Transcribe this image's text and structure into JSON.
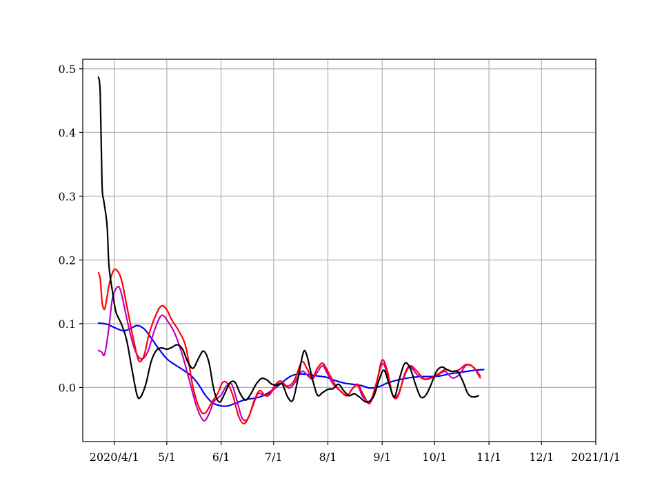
{
  "chart_data": {
    "type": "line",
    "title": "",
    "xlabel": "",
    "ylabel": "",
    "x_axis": {
      "kind": "date",
      "range": [
        "2020-03-14",
        "2021-01-01"
      ],
      "ticks": [
        {
          "date": "2020-04-01",
          "label": "2020/4/1"
        },
        {
          "date": "2020-05-01",
          "label": "5/1"
        },
        {
          "date": "2020-06-01",
          "label": "6/1"
        },
        {
          "date": "2020-07-01",
          "label": "7/1"
        },
        {
          "date": "2020-08-01",
          "label": "8/1"
        },
        {
          "date": "2020-09-01",
          "label": "9/1"
        },
        {
          "date": "2020-10-01",
          "label": "10/1"
        },
        {
          "date": "2020-11-01",
          "label": "11/1"
        },
        {
          "date": "2020-12-01",
          "label": "12/1"
        },
        {
          "date": "2021-01-01",
          "label": "2021/1/1"
        }
      ]
    },
    "y_axis": {
      "range": [
        -0.085,
        0.515
      ],
      "ticks": [
        {
          "value": 0.0,
          "label": "0.0"
        },
        {
          "value": 0.1,
          "label": "0.1"
        },
        {
          "value": 0.2,
          "label": "0.2"
        },
        {
          "value": 0.3,
          "label": "0.3"
        },
        {
          "value": 0.4,
          "label": "0.4"
        },
        {
          "value": 0.5,
          "label": "0.5"
        }
      ]
    },
    "grid": true,
    "legend": "none",
    "series": [
      {
        "color": "#0000ff",
        "points": [
          [
            "2020-03-23",
            0.101
          ],
          [
            "2020-03-28",
            0.099
          ],
          [
            "2020-04-01",
            0.094
          ],
          [
            "2020-04-06",
            0.089
          ],
          [
            "2020-04-10",
            0.092
          ],
          [
            "2020-04-14",
            0.097
          ],
          [
            "2020-04-18",
            0.092
          ],
          [
            "2020-04-22",
            0.078
          ],
          [
            "2020-04-26",
            0.062
          ],
          [
            "2020-05-01",
            0.045
          ],
          [
            "2020-05-06",
            0.035
          ],
          [
            "2020-05-10",
            0.028
          ],
          [
            "2020-05-15",
            0.018
          ],
          [
            "2020-05-19",
            0.005
          ],
          [
            "2020-05-23",
            -0.012
          ],
          [
            "2020-05-27",
            -0.024
          ],
          [
            "2020-06-01",
            -0.029
          ],
          [
            "2020-06-05",
            -0.029
          ],
          [
            "2020-06-10",
            -0.024
          ],
          [
            "2020-06-15",
            -0.019
          ],
          [
            "2020-06-20",
            -0.017
          ],
          [
            "2020-06-25",
            -0.013
          ],
          [
            "2020-07-01",
            -0.003
          ],
          [
            "2020-07-06",
            0.008
          ],
          [
            "2020-07-11",
            0.018
          ],
          [
            "2020-07-16",
            0.021
          ],
          [
            "2020-07-21",
            0.02
          ],
          [
            "2020-07-26",
            0.018
          ],
          [
            "2020-07-31",
            0.016
          ],
          [
            "2020-08-05",
            0.011
          ],
          [
            "2020-08-10",
            0.007
          ],
          [
            "2020-08-15",
            0.005
          ],
          [
            "2020-08-20",
            0.003
          ],
          [
            "2020-08-25",
            -0.001
          ],
          [
            "2020-08-30",
            0.001
          ],
          [
            "2020-09-04",
            0.007
          ],
          [
            "2020-09-09",
            0.011
          ],
          [
            "2020-09-14",
            0.014
          ],
          [
            "2020-09-19",
            0.016
          ],
          [
            "2020-09-24",
            0.017
          ],
          [
            "2020-09-29",
            0.017
          ],
          [
            "2020-10-04",
            0.018
          ],
          [
            "2020-10-09",
            0.021
          ],
          [
            "2020-10-14",
            0.023
          ],
          [
            "2020-10-19",
            0.025
          ],
          [
            "2020-10-24",
            0.027
          ],
          [
            "2020-10-29",
            0.028
          ]
        ]
      },
      {
        "color": "#bf00bf",
        "points": [
          [
            "2020-03-23",
            0.058
          ],
          [
            "2020-03-25",
            0.055
          ],
          [
            "2020-03-26",
            0.05
          ],
          [
            "2020-03-27",
            0.058
          ],
          [
            "2020-03-29",
            0.095
          ],
          [
            "2020-03-31",
            0.14
          ],
          [
            "2020-04-03",
            0.158
          ],
          [
            "2020-04-05",
            0.148
          ],
          [
            "2020-04-08",
            0.11
          ],
          [
            "2020-04-12",
            0.065
          ],
          [
            "2020-04-16",
            0.045
          ],
          [
            "2020-04-20",
            0.055
          ],
          [
            "2020-04-24",
            0.09
          ],
          [
            "2020-04-28",
            0.113
          ],
          [
            "2020-05-02",
            0.102
          ],
          [
            "2020-05-06",
            0.082
          ],
          [
            "2020-05-10",
            0.05
          ],
          [
            "2020-05-14",
            0.01
          ],
          [
            "2020-05-18",
            -0.03
          ],
          [
            "2020-05-22",
            -0.052
          ],
          [
            "2020-05-25",
            -0.042
          ],
          [
            "2020-05-28",
            -0.022
          ],
          [
            "2020-06-01",
            -0.012
          ],
          [
            "2020-06-04",
            0.002
          ],
          [
            "2020-06-07",
            0.005
          ],
          [
            "2020-06-10",
            -0.02
          ],
          [
            "2020-06-13",
            -0.048
          ],
          [
            "2020-06-16",
            -0.05
          ],
          [
            "2020-06-19",
            -0.03
          ],
          [
            "2020-06-22",
            -0.01
          ],
          [
            "2020-06-25",
            -0.012
          ],
          [
            "2020-06-28",
            -0.013
          ],
          [
            "2020-07-01",
            -0.003
          ],
          [
            "2020-07-04",
            0.006
          ],
          [
            "2020-07-07",
            0.004
          ],
          [
            "2020-07-10",
            -0.001
          ],
          [
            "2020-07-13",
            0.007
          ],
          [
            "2020-07-17",
            0.025
          ],
          [
            "2020-07-20",
            0.02
          ],
          [
            "2020-07-23",
            0.013
          ],
          [
            "2020-07-26",
            0.024
          ],
          [
            "2020-07-29",
            0.034
          ],
          [
            "2020-08-01",
            0.02
          ],
          [
            "2020-08-04",
            0.005
          ],
          [
            "2020-08-08",
            -0.005
          ],
          [
            "2020-08-12",
            -0.013
          ],
          [
            "2020-08-15",
            -0.002
          ],
          [
            "2020-08-18",
            0.003
          ],
          [
            "2020-08-21",
            -0.015
          ],
          [
            "2020-08-25",
            -0.022
          ],
          [
            "2020-08-28",
            0.0
          ],
          [
            "2020-09-01",
            0.037
          ],
          [
            "2020-09-04",
            0.02
          ],
          [
            "2020-09-07",
            -0.012
          ],
          [
            "2020-09-10",
            -0.012
          ],
          [
            "2020-09-14",
            0.02
          ],
          [
            "2020-09-17",
            0.032
          ],
          [
            "2020-09-21",
            0.02
          ],
          [
            "2020-09-25",
            0.013
          ],
          [
            "2020-09-29",
            0.015
          ],
          [
            "2020-10-03",
            0.02
          ],
          [
            "2020-10-07",
            0.025
          ],
          [
            "2020-10-11",
            0.015
          ],
          [
            "2020-10-15",
            0.02
          ],
          [
            "2020-10-19",
            0.035
          ],
          [
            "2020-10-23",
            0.032
          ],
          [
            "2020-10-27",
            0.018
          ]
        ]
      },
      {
        "color": "#ff0000",
        "points": [
          [
            "2020-03-23",
            0.18
          ],
          [
            "2020-03-24",
            0.17
          ],
          [
            "2020-03-25",
            0.135
          ],
          [
            "2020-03-26",
            0.123
          ],
          [
            "2020-03-27",
            0.128
          ],
          [
            "2020-03-29",
            0.16
          ],
          [
            "2020-03-31",
            0.18
          ],
          [
            "2020-04-02",
            0.185
          ],
          [
            "2020-04-05",
            0.17
          ],
          [
            "2020-04-08",
            0.13
          ],
          [
            "2020-04-12",
            0.075
          ],
          [
            "2020-04-15",
            0.042
          ],
          [
            "2020-04-18",
            0.05
          ],
          [
            "2020-04-21",
            0.085
          ],
          [
            "2020-04-25",
            0.115
          ],
          [
            "2020-04-28",
            0.128
          ],
          [
            "2020-05-01",
            0.122
          ],
          [
            "2020-05-04",
            0.105
          ],
          [
            "2020-05-08",
            0.088
          ],
          [
            "2020-05-12",
            0.062
          ],
          [
            "2020-05-16",
            0.0
          ],
          [
            "2020-05-20",
            -0.035
          ],
          [
            "2020-05-23",
            -0.04
          ],
          [
            "2020-05-27",
            -0.022
          ],
          [
            "2020-05-30",
            -0.01
          ],
          [
            "2020-06-02",
            0.008
          ],
          [
            "2020-06-05",
            0.005
          ],
          [
            "2020-06-08",
            -0.015
          ],
          [
            "2020-06-11",
            -0.045
          ],
          [
            "2020-06-14",
            -0.057
          ],
          [
            "2020-06-17",
            -0.045
          ],
          [
            "2020-06-20",
            -0.02
          ],
          [
            "2020-06-23",
            -0.005
          ],
          [
            "2020-06-26",
            -0.012
          ],
          [
            "2020-06-29",
            -0.008
          ],
          [
            "2020-07-02",
            0.004
          ],
          [
            "2020-07-05",
            0.01
          ],
          [
            "2020-07-09",
            0.002
          ],
          [
            "2020-07-13",
            0.012
          ],
          [
            "2020-07-17",
            0.04
          ],
          [
            "2020-07-20",
            0.03
          ],
          [
            "2020-07-23",
            0.015
          ],
          [
            "2020-07-26",
            0.03
          ],
          [
            "2020-07-29",
            0.038
          ],
          [
            "2020-08-01",
            0.025
          ],
          [
            "2020-08-05",
            0.005
          ],
          [
            "2020-08-09",
            -0.008
          ],
          [
            "2020-08-12",
            -0.013
          ],
          [
            "2020-08-15",
            -0.002
          ],
          [
            "2020-08-18",
            0.005
          ],
          [
            "2020-08-21",
            -0.01
          ],
          [
            "2020-08-25",
            -0.025
          ],
          [
            "2020-08-29",
            0.01
          ],
          [
            "2020-09-01",
            0.043
          ],
          [
            "2020-09-04",
            0.025
          ],
          [
            "2020-09-07",
            -0.012
          ],
          [
            "2020-09-10",
            -0.014
          ],
          [
            "2020-09-14",
            0.022
          ],
          [
            "2020-09-17",
            0.034
          ],
          [
            "2020-09-21",
            0.025
          ],
          [
            "2020-09-25",
            0.013
          ],
          [
            "2020-09-29",
            0.015
          ],
          [
            "2020-10-03",
            0.021
          ],
          [
            "2020-10-07",
            0.028
          ],
          [
            "2020-10-11",
            0.025
          ],
          [
            "2020-10-15",
            0.028
          ],
          [
            "2020-10-19",
            0.036
          ],
          [
            "2020-10-23",
            0.032
          ],
          [
            "2020-10-27",
            0.015
          ]
        ]
      },
      {
        "color": "#000000",
        "points": [
          [
            "2020-03-23",
            0.487
          ],
          [
            "2020-03-24",
            0.46
          ],
          [
            "2020-03-25",
            0.32
          ],
          [
            "2020-03-26",
            0.293
          ],
          [
            "2020-03-27",
            0.275
          ],
          [
            "2020-03-28",
            0.25
          ],
          [
            "2020-03-29",
            0.19
          ],
          [
            "2020-03-31",
            0.15
          ],
          [
            "2020-04-02",
            0.118
          ],
          [
            "2020-04-05",
            0.1
          ],
          [
            "2020-04-08",
            0.075
          ],
          [
            "2020-04-11",
            0.03
          ],
          [
            "2020-04-14",
            -0.012
          ],
          [
            "2020-04-16",
            -0.015
          ],
          [
            "2020-04-19",
            0.005
          ],
          [
            "2020-04-22",
            0.04
          ],
          [
            "2020-04-25",
            0.058
          ],
          [
            "2020-04-28",
            0.062
          ],
          [
            "2020-05-01",
            0.06
          ],
          [
            "2020-05-04",
            0.063
          ],
          [
            "2020-05-07",
            0.067
          ],
          [
            "2020-05-10",
            0.06
          ],
          [
            "2020-05-13",
            0.04
          ],
          [
            "2020-05-16",
            0.03
          ],
          [
            "2020-05-19",
            0.045
          ],
          [
            "2020-05-22",
            0.057
          ],
          [
            "2020-05-25",
            0.04
          ],
          [
            "2020-05-28",
            -0.005
          ],
          [
            "2020-05-31",
            -0.023
          ],
          [
            "2020-06-03",
            -0.01
          ],
          [
            "2020-06-06",
            0.007
          ],
          [
            "2020-06-09",
            0.008
          ],
          [
            "2020-06-12",
            -0.01
          ],
          [
            "2020-06-15",
            -0.02
          ],
          [
            "2020-06-18",
            -0.01
          ],
          [
            "2020-06-21",
            0.005
          ],
          [
            "2020-06-24",
            0.014
          ],
          [
            "2020-06-27",
            0.012
          ],
          [
            "2020-06-30",
            0.005
          ],
          [
            "2020-07-03",
            0.004
          ],
          [
            "2020-07-06",
            0.005
          ],
          [
            "2020-07-09",
            -0.015
          ],
          [
            "2020-07-12",
            -0.02
          ],
          [
            "2020-07-15",
            0.015
          ],
          [
            "2020-07-18",
            0.055
          ],
          [
            "2020-07-20",
            0.05
          ],
          [
            "2020-07-23",
            0.015
          ],
          [
            "2020-07-26",
            -0.012
          ],
          [
            "2020-07-29",
            -0.008
          ],
          [
            "2020-08-01",
            -0.003
          ],
          [
            "2020-08-04",
            -0.002
          ],
          [
            "2020-08-07",
            0.005
          ],
          [
            "2020-08-10",
            -0.005
          ],
          [
            "2020-08-13",
            -0.013
          ],
          [
            "2020-08-16",
            -0.01
          ],
          [
            "2020-08-19",
            -0.015
          ],
          [
            "2020-08-23",
            -0.023
          ],
          [
            "2020-08-27",
            -0.015
          ],
          [
            "2020-08-30",
            0.01
          ],
          [
            "2020-09-02",
            0.027
          ],
          [
            "2020-09-05",
            0.005
          ],
          [
            "2020-09-08",
            -0.015
          ],
          [
            "2020-09-11",
            0.015
          ],
          [
            "2020-09-14",
            0.038
          ],
          [
            "2020-09-17",
            0.03
          ],
          [
            "2020-09-20",
            0.005
          ],
          [
            "2020-09-23",
            -0.015
          ],
          [
            "2020-09-26",
            -0.012
          ],
          [
            "2020-09-29",
            0.005
          ],
          [
            "2020-10-02",
            0.025
          ],
          [
            "2020-10-05",
            0.032
          ],
          [
            "2020-10-08",
            0.028
          ],
          [
            "2020-10-11",
            0.025
          ],
          [
            "2020-10-14",
            0.025
          ],
          [
            "2020-10-17",
            0.01
          ],
          [
            "2020-10-20",
            -0.01
          ],
          [
            "2020-10-23",
            -0.015
          ],
          [
            "2020-10-26",
            -0.013
          ]
        ]
      }
    ]
  }
}
